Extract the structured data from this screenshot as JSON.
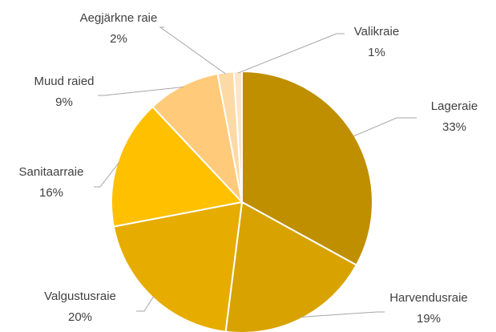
{
  "chart_data": {
    "type": "pie",
    "categories": [
      "Lageraie",
      "Harvendusraie",
      "Valgustusraie",
      "Sanitaarraie",
      "Muud raied",
      "Aegjärkne raie",
      "Valikraie"
    ],
    "values": [
      33,
      19,
      20,
      16,
      9,
      2,
      1
    ],
    "value_labels": [
      "33%",
      "19%",
      "20%",
      "16%",
      "9%",
      "2%",
      "1%"
    ],
    "colors": [
      "#bf8f00",
      "#d8a300",
      "#e6ac00",
      "#ffc000",
      "#ffca7a",
      "#fdd9a6",
      "#fce5c8"
    ]
  }
}
